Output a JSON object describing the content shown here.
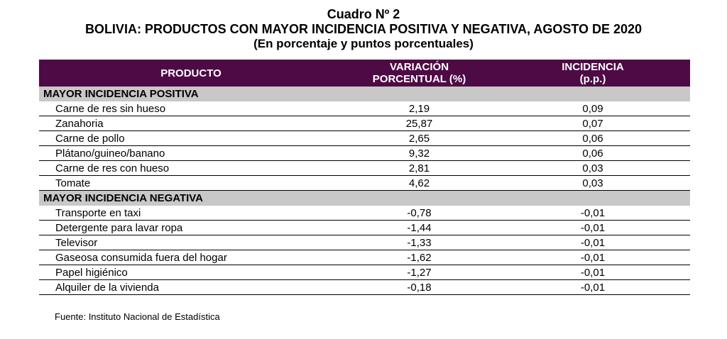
{
  "title": "Cuadro Nº 2",
  "subtitle": "BOLIVIA: PRODUCTOS CON MAYOR INCIDENCIA POSITIVA Y NEGATIVA, AGOSTO DE 2020",
  "units": "(En porcentaje y puntos porcentuales)",
  "header": {
    "col1": "PRODUCTO",
    "col2_line1": "VARIACIÓN",
    "col2_line2": "PORCENTUAL (%)",
    "col3_line1": "INCIDENCIA",
    "col3_line2": "(p.p.)"
  },
  "sections": [
    {
      "label": "MAYOR INCIDENCIA POSITIVA",
      "rows": [
        {
          "product": "Carne de res sin hueso",
          "variation": "2,19",
          "incidence": "0,09"
        },
        {
          "product": "Zanahoria",
          "variation": "25,87",
          "incidence": "0,07"
        },
        {
          "product": "Carne de pollo",
          "variation": "2,65",
          "incidence": "0,06"
        },
        {
          "product": "Plátano/guineo/banano",
          "variation": "9,32",
          "incidence": "0,06"
        },
        {
          "product": "Carne de res con hueso",
          "variation": "2,81",
          "incidence": "0,03"
        },
        {
          "product": "Tomate",
          "variation": "4,62",
          "incidence": "0,03"
        }
      ]
    },
    {
      "label": "MAYOR INCIDENCIA NEGATIVA",
      "rows": [
        {
          "product": "Transporte en taxi",
          "variation": "-0,78",
          "incidence": "-0,01"
        },
        {
          "product": "Detergente para lavar ropa",
          "variation": "-1,44",
          "incidence": "-0,01"
        },
        {
          "product": "Televisor",
          "variation": "-1,33",
          "incidence": "-0,01"
        },
        {
          "product": "Gaseosa consumida fuera del hogar",
          "variation": "-1,62",
          "incidence": "-0,01"
        },
        {
          "product": "Papel higiénico",
          "variation": "-1,27",
          "incidence": "-0,01"
        },
        {
          "product": "Alquiler de la vivienda",
          "variation": "-0,18",
          "incidence": "-0,01"
        }
      ]
    }
  ],
  "source": "Fuente: Instituto Nacional de Estadística",
  "colors": {
    "header_bg": "#4e0a45",
    "section_bg": "#c8c8c8"
  }
}
